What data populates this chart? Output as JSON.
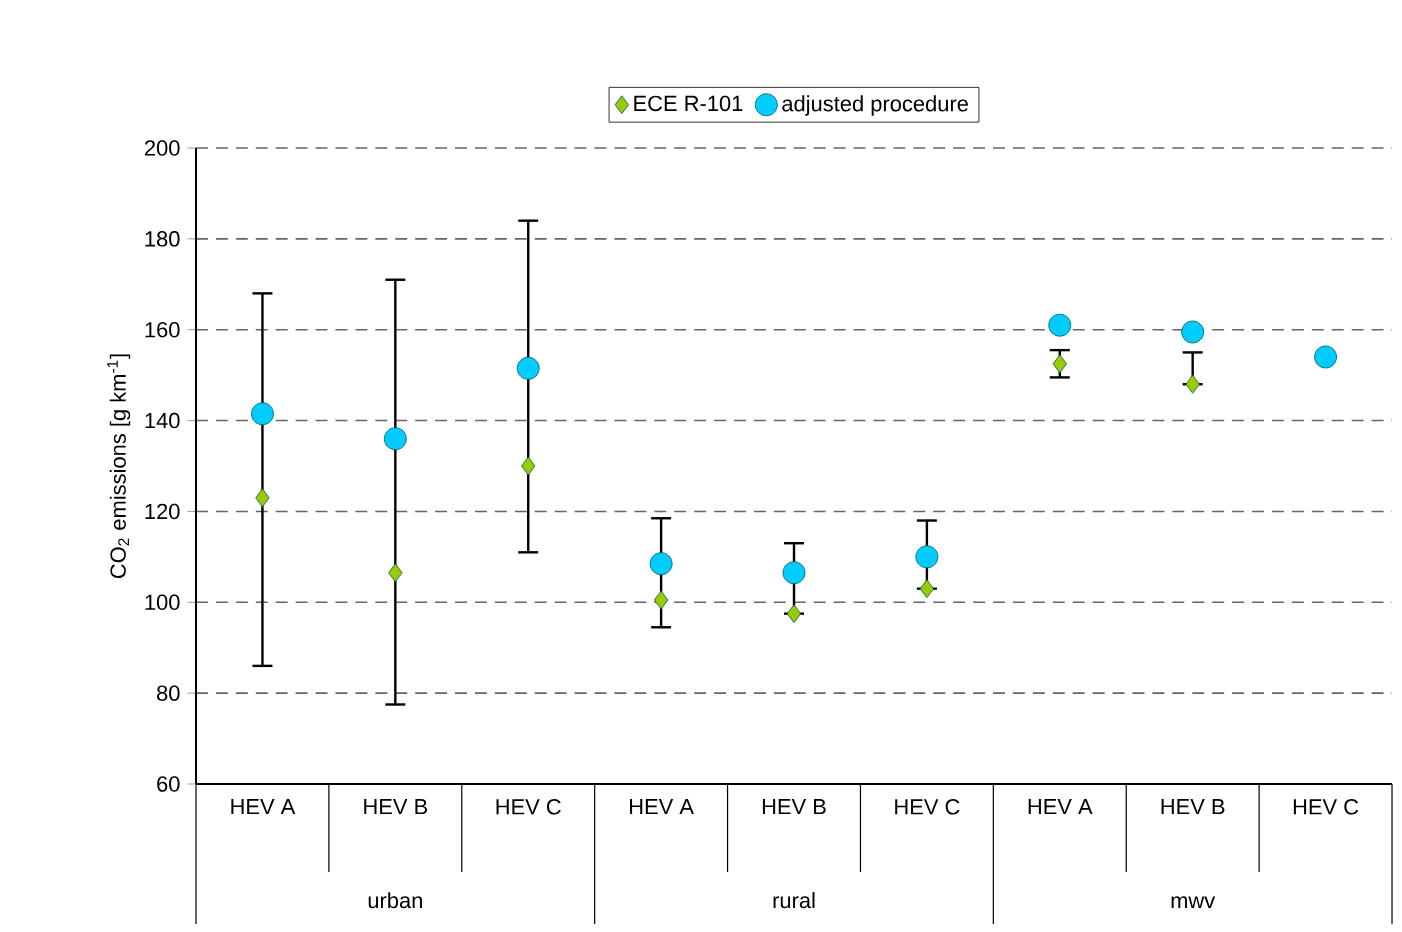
{
  "chart_data": {
    "type": "scatter",
    "ylabel": "CO$_{2}$ emissions [g km$^{-1}$]",
    "categories": [
      "HEV A",
      "HEV B",
      "HEV C",
      "HEV A",
      "HEV B",
      "HEV C",
      "HEV A",
      "HEV B",
      "HEV C"
    ],
    "annotations": [
      "urban",
      "rural",
      "mwv"
    ],
    "series": [
      {
        "name": "ECE R-101",
        "color": "#99cc00",
        "marker": "diamond",
        "values": [
          123,
          106.5,
          130,
          100.5,
          97.5,
          103,
          152.5,
          148,
          null
        ],
        "errors": [
          [
            86,
            168
          ],
          [
            77.5,
            171
          ],
          [
            111,
            184
          ],
          [
            94.5,
            118.5
          ],
          [
            97.5,
            113
          ],
          [
            103,
            118
          ],
          3,
          [
            148,
            155
          ],
          null
        ]
      },
      {
        "name": "adjusted procedure",
        "color": "#00ccff",
        "marker": "circle",
        "values": [
          141.5,
          136,
          151.5,
          108.5,
          106.5,
          110,
          161,
          159.5,
          154
        ]
      }
    ],
    "ylim": [
      60,
      200
    ],
    "yticks": [
      60,
      80,
      100,
      120,
      140,
      160,
      180,
      200
    ],
    "grid": "y",
    "legend": "top"
  }
}
